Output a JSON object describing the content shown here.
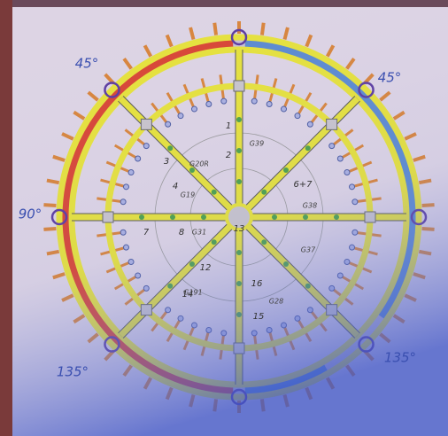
{
  "angle_labels": [
    "45°",
    "45°",
    "90°",
    "135°",
    "135°"
  ],
  "spoke_numbers": [
    "1",
    "2",
    "3",
    "4",
    "6+7",
    "7",
    "8",
    "12",
    "14",
    "15",
    "16",
    "13"
  ],
  "section_codes": [
    "G39",
    "G20R",
    "G19",
    "G38",
    "G31",
    "G191",
    "G28",
    "G37"
  ]
}
